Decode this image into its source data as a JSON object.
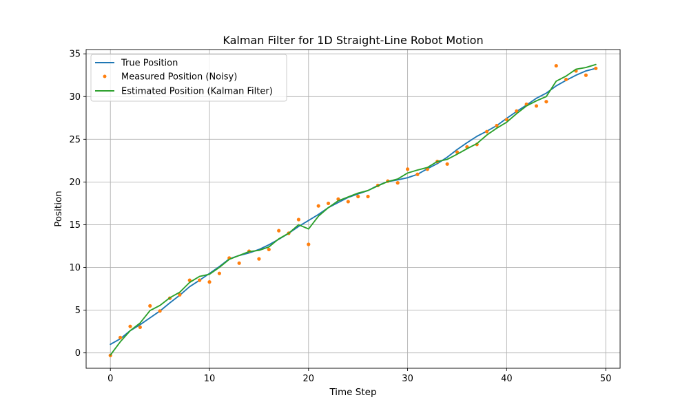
{
  "chart_data": {
    "type": "line",
    "title": "Kalman Filter for 1D Straight-Line Robot Motion",
    "xlabel": "Time Step",
    "ylabel": "Position",
    "xlim": [
      -2.45,
      51.45
    ],
    "ylim": [
      -1.8,
      35.5
    ],
    "xticks": [
      0,
      10,
      20,
      30,
      40,
      50
    ],
    "yticks": [
      0,
      5,
      10,
      15,
      20,
      25,
      30,
      35
    ],
    "grid": true,
    "legend_position": "upper-left",
    "x": [
      0,
      1,
      2,
      3,
      4,
      5,
      6,
      7,
      8,
      9,
      10,
      11,
      12,
      13,
      14,
      15,
      16,
      17,
      18,
      19,
      20,
      21,
      22,
      23,
      24,
      25,
      26,
      27,
      28,
      29,
      30,
      31,
      32,
      33,
      34,
      35,
      36,
      37,
      38,
      39,
      40,
      41,
      42,
      43,
      44,
      45,
      46,
      47,
      48,
      49
    ],
    "series": [
      {
        "name": "True Position",
        "kind": "line",
        "color": "#1f77b4",
        "values": [
          1.0,
          1.65,
          2.6,
          3.3,
          4.1,
          4.9,
          5.85,
          6.75,
          7.75,
          8.5,
          9.3,
          10.1,
          11.0,
          11.4,
          11.7,
          12.1,
          12.65,
          13.3,
          14.0,
          14.8,
          15.5,
          16.2,
          17.0,
          17.6,
          18.2,
          18.6,
          19.0,
          19.6,
          20.05,
          20.25,
          20.5,
          20.9,
          21.55,
          22.15,
          22.9,
          23.8,
          24.6,
          25.35,
          25.95,
          26.6,
          27.45,
          28.25,
          29.0,
          29.8,
          30.4,
          31.25,
          31.9,
          32.5,
          33.0,
          33.3
        ]
      },
      {
        "name": "Measured Position (Noisy)",
        "kind": "scatter",
        "color": "#ff7f0e",
        "values": [
          -0.3,
          1.8,
          3.1,
          3.0,
          5.5,
          4.9,
          6.4,
          6.8,
          8.5,
          8.5,
          8.3,
          9.3,
          11.1,
          10.5,
          11.9,
          11.0,
          12.1,
          14.3,
          14.0,
          15.6,
          12.7,
          17.2,
          17.5,
          18.0,
          17.7,
          18.3,
          18.3,
          19.6,
          20.1,
          19.9,
          21.5,
          20.9,
          21.5,
          22.4,
          22.1,
          23.5,
          24.1,
          24.4,
          25.9,
          26.6,
          27.3,
          28.3,
          29.1,
          28.9,
          29.4,
          33.6,
          32.0,
          33.0,
          32.5,
          33.3
        ]
      },
      {
        "name": "Estimated Position (Kalman Filter)",
        "kind": "line",
        "color": "#2ca02c",
        "values": [
          -0.25,
          1.3,
          2.6,
          3.5,
          4.95,
          5.55,
          6.45,
          7.1,
          8.25,
          8.95,
          9.2,
          10.0,
          10.95,
          11.4,
          11.85,
          12.0,
          12.4,
          13.35,
          14.0,
          15.0,
          14.5,
          16.0,
          17.0,
          17.8,
          18.25,
          18.7,
          19.0,
          19.55,
          20.05,
          20.35,
          21.05,
          21.4,
          21.7,
          22.4,
          22.65,
          23.25,
          23.9,
          24.5,
          25.5,
          26.3,
          27.0,
          28.0,
          28.9,
          29.5,
          30.0,
          31.8,
          32.4,
          33.2,
          33.4,
          33.75
        ]
      }
    ]
  }
}
